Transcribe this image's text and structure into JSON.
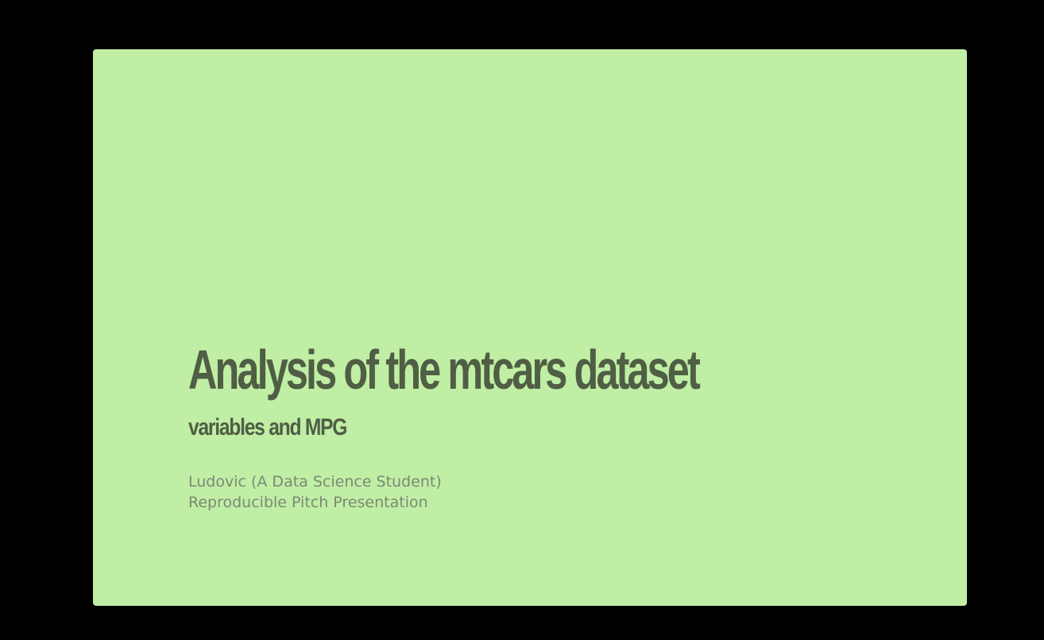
{
  "slide": {
    "title": "Analysis of the mtcars dataset",
    "subtitle": "variables and MPG",
    "author": "Ludovic (A Data Science Student)",
    "note": "Reproducible Pitch Presentation"
  },
  "colors": {
    "background": "#000000",
    "slide_background": "#c0eea5",
    "heading_text": "#4f5e44",
    "meta_text": "#7a8a74"
  }
}
